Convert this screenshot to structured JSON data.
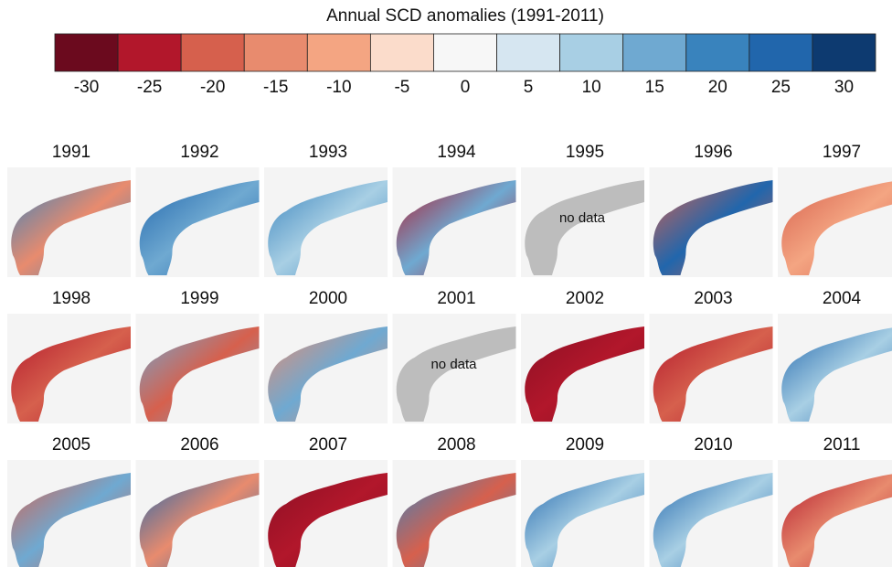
{
  "colorbar": {
    "title": "Annual SCD anomalies (1991-2011)",
    "ticks": [
      -30,
      -25,
      -20,
      -15,
      -10,
      -5,
      0,
      5,
      10,
      15,
      20,
      25,
      30
    ],
    "colors": [
      "#6b0a1e",
      "#b2172b",
      "#d6604d",
      "#e88b6e",
      "#f4a582",
      "#fbdccb",
      "#f7f7f7",
      "#d6e6f1",
      "#a8cfe4",
      "#6fa9d1",
      "#3983bd",
      "#2166ac",
      "#0d3a70"
    ]
  },
  "panels": [
    {
      "year": "1991",
      "colors": [
        "#3983bd",
        "#e88b6e"
      ]
    },
    {
      "year": "1992",
      "colors": [
        "#2166ac",
        "#6fa9d1"
      ]
    },
    {
      "year": "1993",
      "colors": [
        "#3983bd",
        "#a8cfe4"
      ]
    },
    {
      "year": "1994",
      "colors": [
        "#b2172b",
        "#6fa9d1"
      ]
    },
    {
      "year": "1995",
      "colors": [
        "#bdbdbd",
        "#bdbdbd"
      ],
      "label": "no data"
    },
    {
      "year": "1996",
      "colors": [
        "#d6604d",
        "#2166ac"
      ]
    },
    {
      "year": "1997",
      "colors": [
        "#d6604d",
        "#f4a582"
      ]
    },
    {
      "year": "1998",
      "colors": [
        "#b2172b",
        "#d6604d"
      ]
    },
    {
      "year": "1999",
      "colors": [
        "#6fa9d1",
        "#d6604d"
      ]
    },
    {
      "year": "2000",
      "colors": [
        "#e88b6e",
        "#6fa9d1"
      ]
    },
    {
      "year": "2001",
      "colors": [
        "#bdbdbd",
        "#bdbdbd"
      ],
      "label": "no data"
    },
    {
      "year": "2002",
      "colors": [
        "#8b0f24",
        "#b2172b"
      ]
    },
    {
      "year": "2003",
      "colors": [
        "#b2172b",
        "#d6604d"
      ]
    },
    {
      "year": "2004",
      "colors": [
        "#2166ac",
        "#a8cfe4"
      ]
    },
    {
      "year": "2005",
      "colors": [
        "#d6604d",
        "#6fa9d1"
      ]
    },
    {
      "year": "2006",
      "colors": [
        "#2166ac",
        "#e88b6e"
      ]
    },
    {
      "year": "2007",
      "colors": [
        "#8b0f24",
        "#b2172b"
      ]
    },
    {
      "year": "2008",
      "colors": [
        "#3983bd",
        "#d6604d"
      ]
    },
    {
      "year": "2009",
      "colors": [
        "#2166ac",
        "#a8cfe4"
      ]
    },
    {
      "year": "2010",
      "colors": [
        "#2166ac",
        "#a8cfe4"
      ]
    },
    {
      "year": "2011",
      "colors": [
        "#b2172b",
        "#e88b6e"
      ]
    }
  ]
}
